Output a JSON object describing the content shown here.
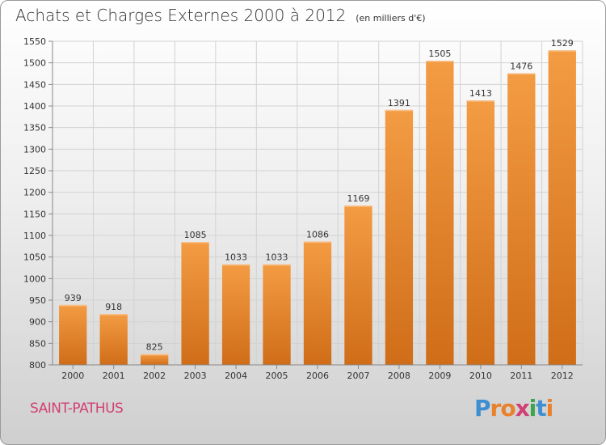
{
  "title": "Achats et Charges Externes 2000 à 2012",
  "subtitle": "(en milliers d'€)",
  "commune": "SAINT-PATHUS",
  "logo": {
    "letters": [
      "P",
      "r",
      "o",
      "x",
      "i",
      "t",
      "i"
    ],
    "colors": [
      "#3d8fd1",
      "#e9812a",
      "#e9812a",
      "#d23f74",
      "#3aa64a",
      "#3d8fd1",
      "#e9812a"
    ]
  },
  "chart_data": {
    "type": "bar",
    "categories": [
      "2000",
      "2001",
      "2002",
      "2003",
      "2004",
      "2005",
      "2006",
      "2007",
      "2008",
      "2009",
      "2010",
      "2011",
      "2012"
    ],
    "values": [
      939,
      918,
      825,
      1085,
      1033,
      1033,
      1086,
      1169,
      1391,
      1505,
      1413,
      1476,
      1529
    ],
    "ylim": [
      800,
      1550
    ],
    "yticks": [
      800,
      850,
      900,
      950,
      1000,
      1050,
      1100,
      1150,
      1200,
      1250,
      1300,
      1350,
      1400,
      1450,
      1500,
      1550
    ],
    "grid": true,
    "bar_color": "#f39c43",
    "bar_color_dark": "#d06d18",
    "xlabel": "",
    "ylabel": ""
  }
}
